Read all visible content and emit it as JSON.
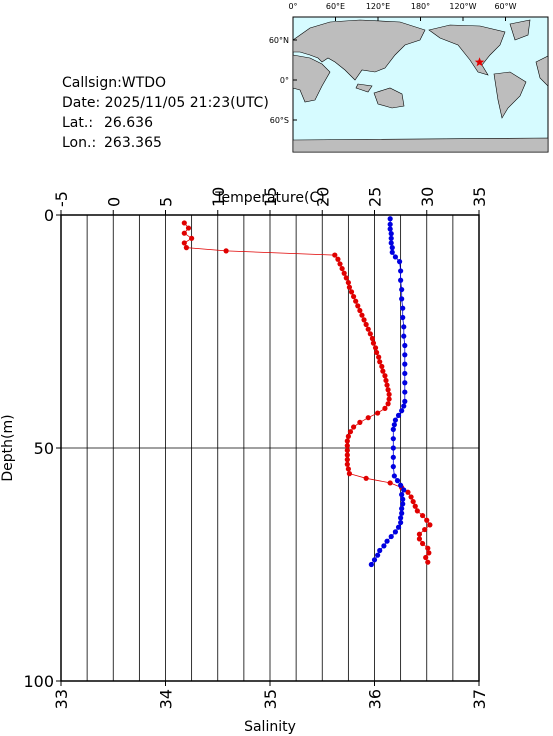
{
  "info": {
    "callsign": "Callsign:WTDO",
    "date": "Date:  2025/11/05 21:23(UTC)",
    "lat_label": "Lat.:",
    "lat": 26.636,
    "lon_label": "Lon.:",
    "lon": 263.365
  },
  "map": {
    "lon_ticks": [
      {
        "value": 0,
        "label": "0°"
      },
      {
        "value": 60,
        "label": "60°E"
      },
      {
        "value": 120,
        "label": "120°E"
      },
      {
        "value": 180,
        "label": "180°"
      },
      {
        "value": 240,
        "label": "120°W"
      },
      {
        "value": 300,
        "label": "60°W"
      }
    ],
    "lat_ticks": [
      {
        "value": 60,
        "label": "60°N"
      },
      {
        "value": 0,
        "label": "0°"
      },
      {
        "value": -60,
        "label": "60°S"
      }
    ]
  },
  "chart_data": {
    "type": "profile",
    "x_top_label": "Temperature(C)",
    "x_bottom_label": "Salinity",
    "y_label": "Depth(m)",
    "xlim_top": [
      -5,
      35
    ],
    "xticks_top": [
      -5,
      0,
      5,
      10,
      15,
      20,
      25,
      30,
      35
    ],
    "xlim": [
      33,
      37
    ],
    "xticks": [
      33,
      34,
      35,
      36,
      37
    ],
    "ylim": [
      0,
      100
    ],
    "yticks": [
      0,
      50,
      100
    ],
    "y_inverted": true,
    "grid": true,
    "series": [
      {
        "color": "#e00000",
        "axis": "top",
        "depth": [
          1.7,
          2.8,
          3.9,
          5.0,
          6.0,
          7.0,
          7.7,
          8.6,
          9.5,
          10.5,
          11.5,
          12.5,
          13.5,
          14.5,
          15.5,
          16.5,
          17.5,
          18.5,
          19.5,
          20.5,
          21.5,
          22.5,
          23.5,
          24.5,
          25.5,
          26.5,
          27.5,
          28.5,
          29.5,
          30.5,
          31.5,
          32.5,
          33.5,
          34.5,
          35.5,
          36.5,
          37.5,
          38.5,
          39.5,
          40.5,
          41.5,
          42.5,
          43.5,
          44.5,
          45.5,
          46.5,
          47.5,
          48.5,
          49.5,
          50.5,
          51.5,
          52.5,
          53.5,
          54.5,
          55.5,
          56.5,
          57.5,
          58.5,
          59.5,
          60.5,
          61.5,
          62.5,
          63.5,
          64.5,
          65.5,
          66.5,
          67.5,
          68.5,
          69.5,
          70.5,
          71.5,
          72.5,
          73.5,
          74.5
        ],
        "values": [
          6.8,
          7.2,
          6.8,
          7.5,
          6.8,
          7.0,
          10.8,
          21.2,
          21.5,
          21.7,
          21.9,
          22.1,
          22.3,
          22.5,
          22.6,
          22.8,
          23.0,
          23.2,
          23.4,
          23.6,
          23.8,
          24.0,
          24.2,
          24.4,
          24.6,
          24.8,
          24.9,
          25.1,
          25.2,
          25.4,
          25.5,
          25.7,
          25.8,
          26.0,
          26.1,
          26.2,
          26.3,
          26.4,
          26.4,
          26.3,
          26.0,
          25.3,
          24.4,
          23.6,
          23.0,
          22.7,
          22.5,
          22.4,
          22.4,
          22.4,
          22.4,
          22.4,
          22.4,
          22.5,
          22.6,
          24.2,
          26.5,
          27.6,
          28.2,
          28.5,
          28.7,
          28.9,
          29.1,
          29.6,
          30.0,
          30.3,
          29.8,
          29.3,
          29.3,
          29.6,
          30.1,
          30.2,
          29.9,
          30.1
        ]
      },
      {
        "color": "#0000e0",
        "axis": "bottom",
        "depth": [
          0.8,
          2,
          3,
          4,
          5,
          6,
          7,
          8,
          9,
          10,
          12,
          14,
          16,
          18,
          20,
          22,
          24,
          26,
          28,
          30,
          32,
          34,
          36,
          38,
          40,
          41,
          42,
          43,
          44,
          45,
          46,
          48,
          50,
          52,
          54,
          56,
          57,
          58,
          59,
          60,
          61,
          62,
          63,
          64,
          65,
          66,
          67,
          68,
          69,
          70,
          71,
          72,
          73,
          74,
          75
        ],
        "values": [
          36.15,
          36.15,
          36.15,
          36.16,
          36.16,
          36.16,
          36.17,
          36.17,
          36.2,
          36.24,
          36.25,
          36.25,
          36.26,
          36.26,
          36.27,
          36.27,
          36.28,
          36.28,
          36.29,
          36.29,
          36.29,
          36.29,
          36.29,
          36.29,
          36.29,
          36.28,
          36.26,
          36.23,
          36.2,
          36.19,
          36.18,
          36.18,
          36.18,
          36.18,
          36.18,
          36.19,
          36.22,
          36.25,
          36.28,
          36.26,
          36.27,
          36.27,
          36.26,
          36.26,
          36.25,
          36.25,
          36.23,
          36.2,
          36.16,
          36.12,
          36.09,
          36.05,
          36.03,
          36.0,
          35.97
        ]
      }
    ]
  }
}
